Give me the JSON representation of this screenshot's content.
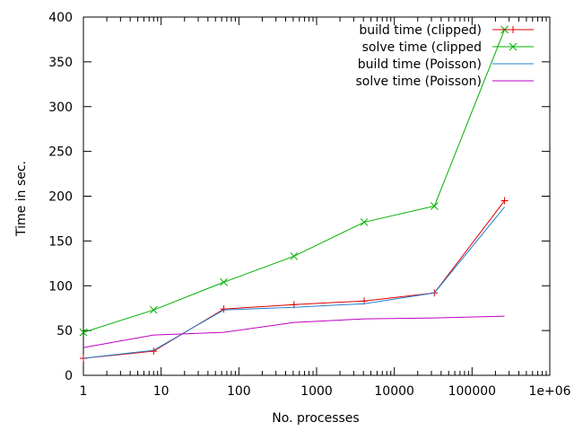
{
  "chart_data": {
    "type": "line",
    "title": "",
    "xlabel": "No. processes",
    "ylabel": "Time in sec.",
    "xscale": "log",
    "xlim": [
      1,
      1000000
    ],
    "ylim": [
      0,
      400
    ],
    "x_tick_labels": [
      "1",
      "10",
      "100",
      "1000",
      "10000",
      "100000",
      "1e+06"
    ],
    "y_tick_labels": [
      "0",
      "50",
      "100",
      "150",
      "200",
      "250",
      "300",
      "350",
      "400"
    ],
    "x_ticks": [
      1,
      10,
      100,
      1000,
      10000,
      100000,
      1000000
    ],
    "y_ticks": [
      0,
      50,
      100,
      150,
      200,
      250,
      300,
      350,
      400
    ],
    "grid": false,
    "legend_position": "top-right",
    "x": [
      1,
      8,
      64,
      512,
      4096,
      32768,
      262144
    ],
    "series": [
      {
        "name": "build time (clipped)",
        "color": "#e00000",
        "marker": "plus",
        "values": [
          19,
          27,
          74,
          79,
          83,
          92,
          195
        ]
      },
      {
        "name": "solve time (clipped",
        "color": "#00b000",
        "marker": "cross",
        "values": [
          48,
          73,
          104,
          133,
          171,
          189,
          386
        ]
      },
      {
        "name": "build time (Poisson)",
        "color": "#2080d0",
        "marker": "none",
        "values": [
          19,
          28,
          73,
          76,
          80,
          92,
          188
        ]
      },
      {
        "name": "solve time (Poisson)",
        "color": "#c000c0",
        "marker": "none",
        "values": [
          31,
          45,
          48,
          59,
          63,
          64,
          66
        ]
      }
    ]
  }
}
